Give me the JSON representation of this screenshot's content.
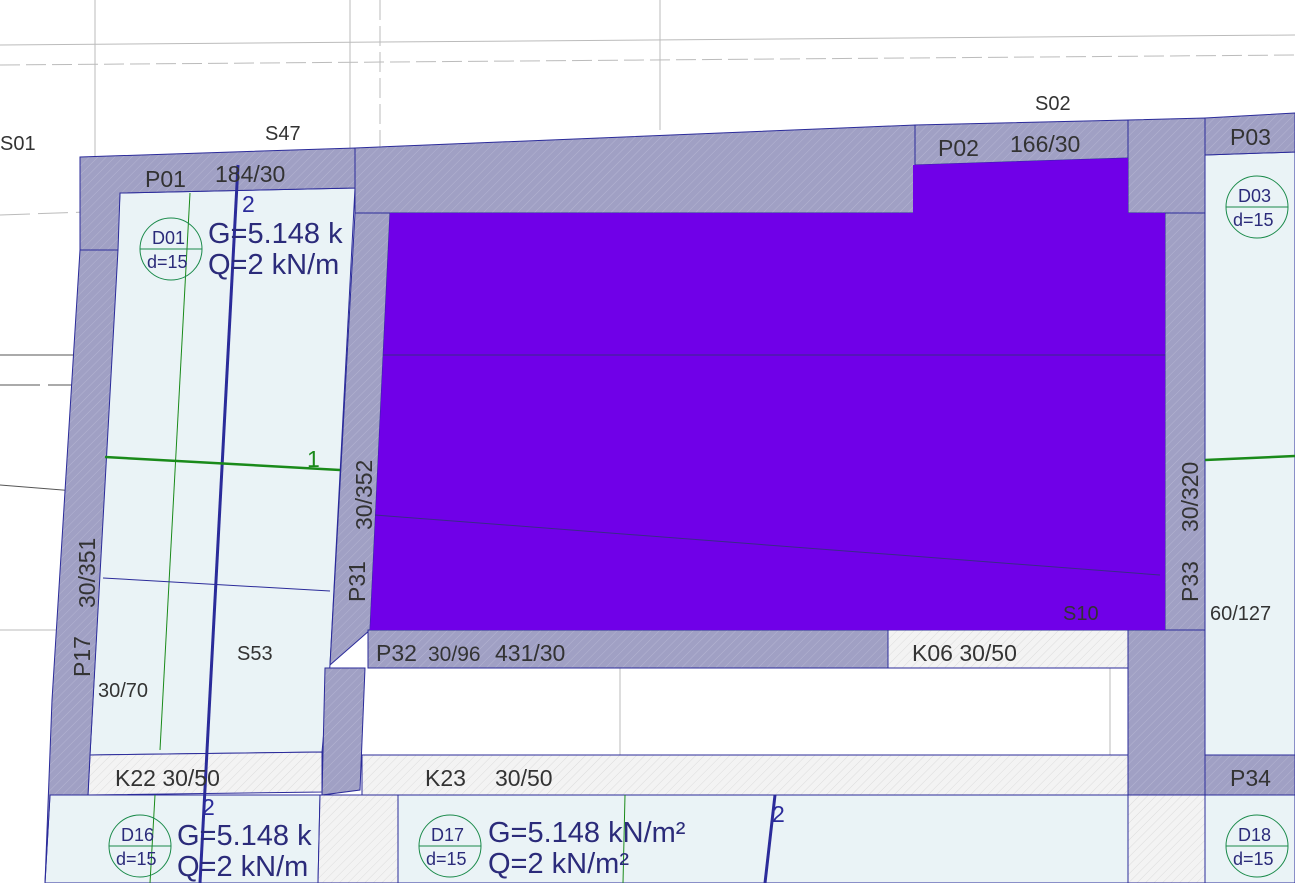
{
  "colors": {
    "wall": "#a0a0c4",
    "slab": "#eaf3f6",
    "beam": "#f2f2f2",
    "selected": "#7000e8",
    "outline": "#2b2b9a",
    "rebar_green": "#1a8a1a"
  },
  "labels": {
    "s01": "S01",
    "s47": "S47",
    "s02": "S02",
    "p03": "P03",
    "p01": "P01",
    "p01_size": "184/30",
    "p02": "P02",
    "p02_size": "166/30",
    "p31": "P31",
    "p31_size": "30/352",
    "p17": "P17",
    "p17_size": "30/351",
    "p33": "P33",
    "p33_size": "30/320",
    "s10": "S10",
    "s53": "S53",
    "c_60_127": "60/127",
    "p32": "P32",
    "p32_size": "431/30",
    "c_30_96": "30/96",
    "k06": "K06 30/50",
    "c_30_70": "30/70",
    "k22": "K22 30/50",
    "k23": "K23",
    "k23_size": "30/50",
    "p34": "P34",
    "axis_1": "1",
    "axis_2": "2"
  },
  "slabs": [
    {
      "id": "D01",
      "d": "d=15",
      "g": "G=5.148 k",
      "q": "Q=2 kN/m"
    },
    {
      "id": "D03",
      "d": "d=15"
    },
    {
      "id": "D16",
      "d": "d=15",
      "g": "G=5.148 k",
      "q": "Q=2 kN/m"
    },
    {
      "id": "D17",
      "d": "d=15",
      "g": "G=5.148 kN/m²",
      "q": "Q=2 kN/m²"
    },
    {
      "id": "D18",
      "d": "d=15"
    }
  ]
}
